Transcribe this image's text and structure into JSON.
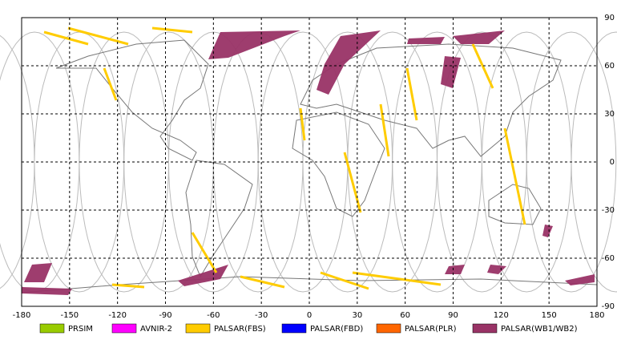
{
  "map": {
    "xlim": [
      -180,
      180
    ],
    "ylim": [
      -90,
      90
    ],
    "xticks": [
      -180,
      -150,
      -120,
      -90,
      -60,
      -30,
      0,
      30,
      60,
      90,
      120,
      150,
      180
    ],
    "yticks": [
      90,
      60,
      30,
      0,
      -30,
      -60,
      -90
    ]
  },
  "legend": [
    {
      "name": "PRSIM",
      "color": "#99cc00"
    },
    {
      "name": "AVNIR-2",
      "color": "#ff00ff"
    },
    {
      "name": "PALSAR(FBS)",
      "color": "#ffcc00"
    },
    {
      "name": "PALSAR(FBD)",
      "color": "#0000ff"
    },
    {
      "name": "PALSAR(PLR)",
      "color": "#ff6600"
    },
    {
      "name": "PALSAR(WB1/WB2)",
      "color": "#993366"
    }
  ]
}
